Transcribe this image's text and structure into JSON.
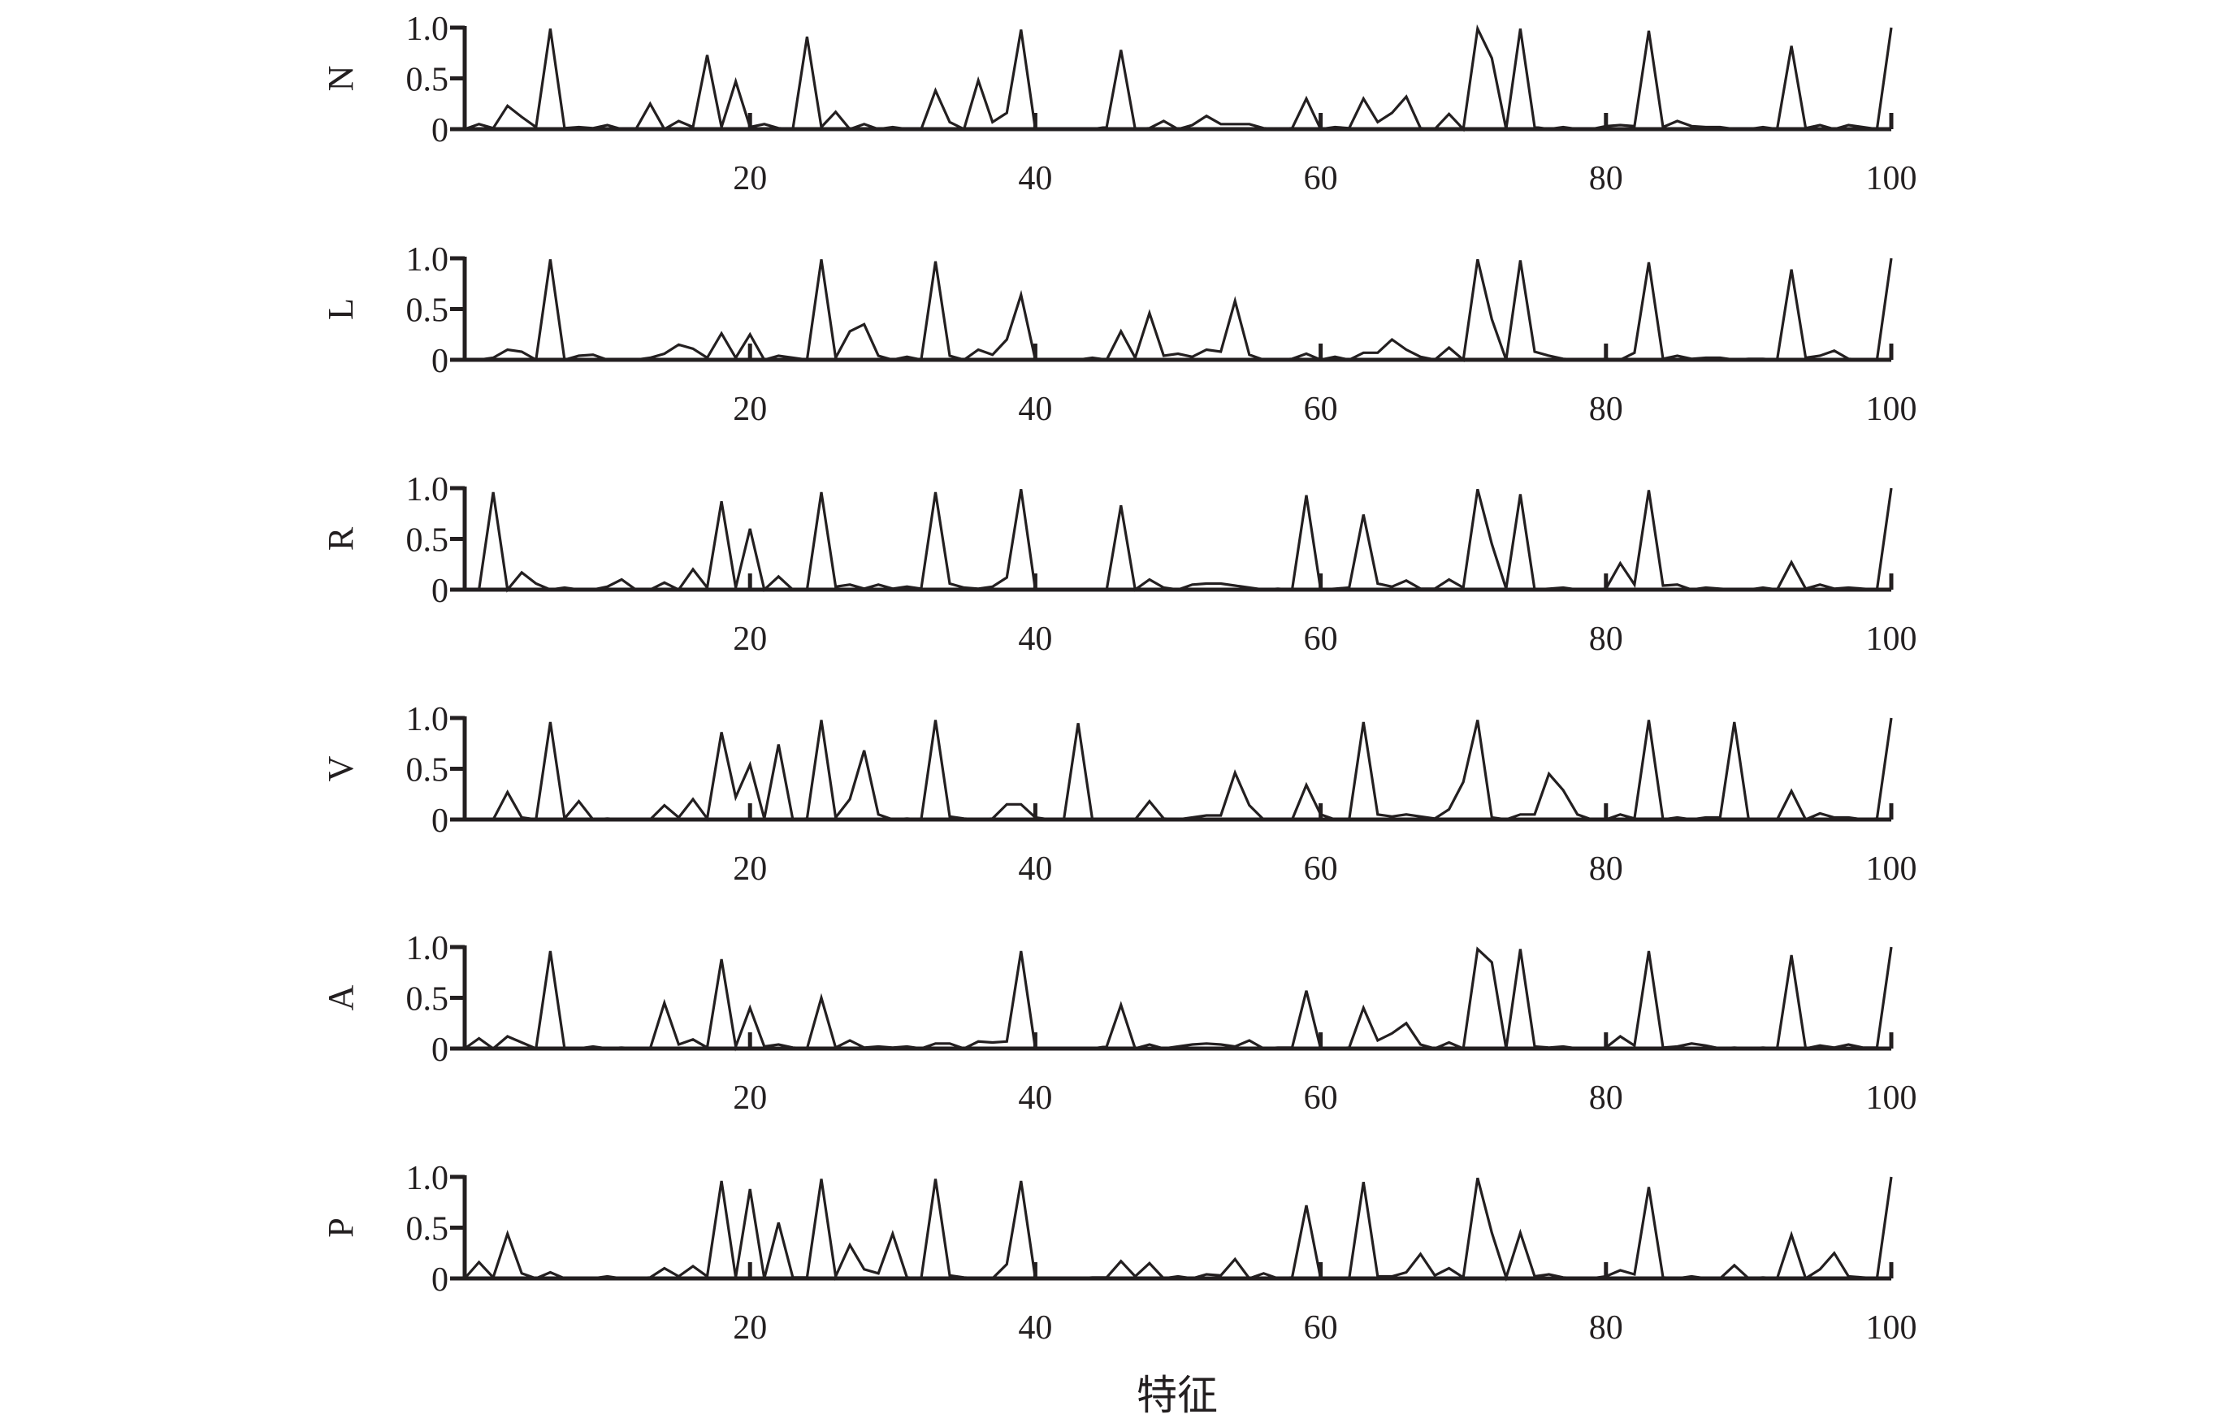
{
  "chart_data": {
    "type": "line",
    "layout": "6 stacked line panels sharing one x axis",
    "xlabel": "特征",
    "x": [
      0,
      1,
      2,
      3,
      4,
      5,
      6,
      7,
      8,
      9,
      10,
      11,
      12,
      13,
      14,
      15,
      16,
      17,
      18,
      19,
      20,
      21,
      22,
      23,
      24,
      25,
      26,
      27,
      28,
      29,
      30,
      31,
      32,
      33,
      34,
      35,
      36,
      37,
      38,
      39,
      40,
      41,
      42,
      43,
      44,
      45,
      46,
      47,
      48,
      49,
      50,
      51,
      52,
      53,
      54,
      55,
      56,
      57,
      58,
      59,
      60,
      61,
      62,
      63,
      64,
      65,
      66,
      67,
      68,
      69,
      70,
      71,
      72,
      73,
      74,
      75,
      76,
      77,
      78,
      79,
      80,
      81,
      82,
      83,
      84,
      85,
      86,
      87,
      88,
      89,
      90,
      91,
      92,
      93,
      94,
      95,
      96,
      97,
      98,
      99,
      100
    ],
    "xlim": [
      0,
      100
    ],
    "xticks": [
      20,
      40,
      60,
      80,
      100
    ],
    "ylim": [
      0,
      1
    ],
    "yticks": [
      "0",
      "0.5",
      "1.0"
    ],
    "grid": false,
    "panels": [
      {
        "label": "N",
        "values": [
          0,
          0.05,
          0.01,
          0.23,
          0.12,
          0.02,
          0.99,
          0.01,
          0.02,
          0.01,
          0.04,
          0,
          0,
          0.25,
          0,
          0.08,
          0.02,
          0.73,
          0.02,
          0.47,
          0.02,
          0.05,
          0.01,
          0,
          0.91,
          0.02,
          0.17,
          0,
          0.05,
          0,
          0.02,
          0,
          0,
          0.38,
          0.07,
          0,
          0.48,
          0.07,
          0.16,
          0.98,
          0,
          0,
          0,
          0,
          0,
          0.02,
          0.78,
          0,
          0.01,
          0.08,
          0,
          0.04,
          0.13,
          0.05,
          0.05,
          0.05,
          0.01,
          0,
          0.01,
          0.3,
          0,
          0.02,
          0.01,
          0.3,
          0.07,
          0.16,
          0.32,
          0.01,
          0,
          0.15,
          0,
          0.99,
          0.7,
          0,
          0.99,
          0.02,
          0,
          0.02,
          0,
          0,
          0.03,
          0.04,
          0.03,
          0.97,
          0.02,
          0.08,
          0.03,
          0.02,
          0.02,
          0,
          0,
          0.02,
          0,
          0.82,
          0.01,
          0.04,
          0,
          0.04,
          0.02,
          0,
          1.0
        ]
      },
      {
        "label": "L",
        "values": [
          0,
          0,
          0.02,
          0.1,
          0.08,
          0,
          0.99,
          0,
          0.04,
          0.05,
          0,
          0,
          0,
          0.02,
          0.06,
          0.15,
          0.11,
          0.02,
          0.26,
          0.02,
          0.25,
          0,
          0.04,
          0.02,
          0,
          0.99,
          0.02,
          0.28,
          0.35,
          0.04,
          0,
          0.03,
          0,
          0.97,
          0.04,
          0,
          0.1,
          0.05,
          0.2,
          0.64,
          0,
          0,
          0,
          0,
          0.02,
          0,
          0.28,
          0.02,
          0.46,
          0.04,
          0.06,
          0.03,
          0.1,
          0.08,
          0.58,
          0.05,
          0,
          0,
          0.01,
          0.06,
          0,
          0.03,
          0,
          0.07,
          0.07,
          0.2,
          0.1,
          0.03,
          0,
          0.12,
          0,
          0.99,
          0.4,
          0,
          0.98,
          0.08,
          0.04,
          0.01,
          0,
          0,
          0.01,
          0,
          0.07,
          0.96,
          0.01,
          0.04,
          0.01,
          0.02,
          0.02,
          0,
          0.01,
          0.01,
          0,
          0.89,
          0.02,
          0.04,
          0.09,
          0.01,
          0,
          0,
          1.0
        ]
      },
      {
        "label": "R",
        "values": [
          0,
          0,
          0.96,
          0,
          0.17,
          0.06,
          0,
          0.02,
          0,
          0,
          0.03,
          0.1,
          0,
          0,
          0.07,
          0,
          0.2,
          0.02,
          0.87,
          0.02,
          0.6,
          0,
          0.13,
          0,
          0,
          0.96,
          0.03,
          0.05,
          0.01,
          0.05,
          0.01,
          0.03,
          0.01,
          0.96,
          0.06,
          0.02,
          0.01,
          0.03,
          0.12,
          0.99,
          0,
          0,
          0,
          0,
          0,
          0,
          0.83,
          0,
          0.1,
          0.02,
          0,
          0.05,
          0.06,
          0.06,
          0.04,
          0.02,
          0,
          0.01,
          0,
          0.93,
          0,
          0.01,
          0.02,
          0.74,
          0.06,
          0.03,
          0.09,
          0.01,
          0.01,
          0.1,
          0.02,
          0.99,
          0.45,
          0.01,
          0.94,
          0,
          0.01,
          0.02,
          0,
          0,
          0.01,
          0.26,
          0.05,
          0.98,
          0.04,
          0.05,
          0,
          0.02,
          0.01,
          0,
          0,
          0.02,
          0,
          0.27,
          0.01,
          0.05,
          0.01,
          0.02,
          0.01,
          0,
          1.0
        ]
      },
      {
        "label": "V",
        "values": [
          0,
          0,
          0,
          0.27,
          0.02,
          0,
          0.96,
          0.01,
          0.18,
          0,
          0.01,
          0,
          0,
          0,
          0.14,
          0.02,
          0.2,
          0.01,
          0.86,
          0.22,
          0.54,
          0.01,
          0.74,
          0,
          0.01,
          0.98,
          0.02,
          0.2,
          0.68,
          0.05,
          0,
          0.01,
          0,
          0.98,
          0.03,
          0.01,
          0,
          0.01,
          0.15,
          0.15,
          0.02,
          0,
          0,
          0.95,
          0,
          0,
          0,
          0,
          0.18,
          0.01,
          0,
          0.02,
          0.04,
          0.04,
          0.46,
          0.14,
          0,
          0,
          0,
          0.34,
          0.05,
          0,
          0,
          0.96,
          0.05,
          0.03,
          0.05,
          0.03,
          0.01,
          0.1,
          0.37,
          0.98,
          0.02,
          0,
          0.05,
          0.05,
          0.45,
          0.29,
          0.05,
          0,
          0,
          0.05,
          0.01,
          0.98,
          0,
          0.02,
          0,
          0.02,
          0.02,
          0.96,
          0,
          0,
          0,
          0.28,
          0,
          0.06,
          0.02,
          0.02,
          0,
          0.01,
          1.0
        ]
      },
      {
        "label": "A",
        "values": [
          0,
          0.1,
          0,
          0.12,
          0.06,
          0,
          0.96,
          0,
          0,
          0.02,
          0,
          0.01,
          0,
          0,
          0.45,
          0.04,
          0.09,
          0.01,
          0.88,
          0.02,
          0.4,
          0.02,
          0.04,
          0.01,
          0,
          0.5,
          0.01,
          0.08,
          0.01,
          0.02,
          0.01,
          0.02,
          0,
          0.05,
          0.05,
          0,
          0.07,
          0.06,
          0.07,
          0.96,
          0,
          0,
          0,
          0,
          0,
          0.02,
          0.43,
          0,
          0.04,
          0,
          0.02,
          0.04,
          0.05,
          0.04,
          0.02,
          0.08,
          0,
          0.01,
          0.01,
          0.57,
          0,
          0,
          0.01,
          0.4,
          0.08,
          0.15,
          0.25,
          0.04,
          0,
          0.06,
          0,
          0.98,
          0.85,
          0,
          0.98,
          0.02,
          0.01,
          0.02,
          0,
          0,
          0.01,
          0.12,
          0.03,
          0.96,
          0.01,
          0.02,
          0.05,
          0.03,
          0,
          0.01,
          0,
          0.01,
          0,
          0.92,
          0,
          0.03,
          0.01,
          0.04,
          0.01,
          0.01,
          1.0
        ]
      },
      {
        "label": "P",
        "values": [
          0,
          0.16,
          0.01,
          0.44,
          0.05,
          0,
          0.06,
          0,
          0,
          0,
          0.02,
          0,
          0,
          0.01,
          0.1,
          0.02,
          0.12,
          0.02,
          0.96,
          0.01,
          0.88,
          0,
          0.55,
          0.01,
          0.01,
          0.98,
          0.02,
          0.33,
          0.09,
          0.05,
          0.44,
          0.01,
          0,
          0.98,
          0.03,
          0.01,
          0,
          0,
          0.14,
          0.96,
          0,
          0,
          0,
          0,
          0.01,
          0.01,
          0.17,
          0.02,
          0.15,
          0,
          0.02,
          0,
          0.04,
          0.03,
          0.19,
          0,
          0.05,
          0,
          0.01,
          0.72,
          0,
          0,
          0,
          0.95,
          0.02,
          0.02,
          0.06,
          0.24,
          0.03,
          0.1,
          0.01,
          0.99,
          0.45,
          0.01,
          0.45,
          0.02,
          0.04,
          0.01,
          0,
          0,
          0.02,
          0.08,
          0.04,
          0.9,
          0.01,
          0,
          0.02,
          0,
          0,
          0.13,
          0,
          0.01,
          0,
          0.43,
          0,
          0.09,
          0.25,
          0.02,
          0.01,
          0,
          1.0
        ]
      }
    ]
  }
}
